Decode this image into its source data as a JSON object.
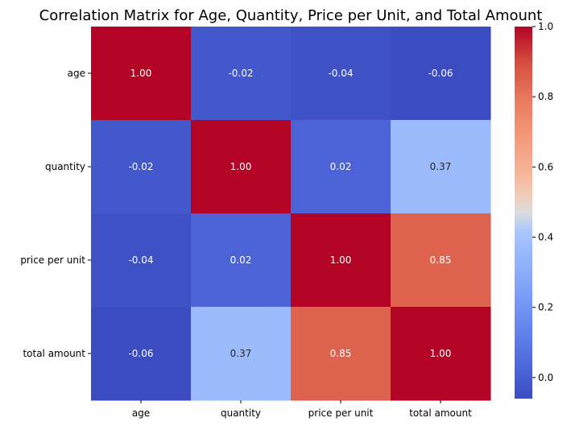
{
  "chart_data": {
    "type": "heatmap",
    "title": "Correlation Matrix for Age, Quantity, Price per Unit, and Total Amount",
    "x_labels": [
      "age",
      "quantity",
      "price per unit",
      "total amount"
    ],
    "y_labels": [
      "age",
      "quantity",
      "price per unit",
      "total amount"
    ],
    "values": [
      [
        1.0,
        -0.02,
        -0.04,
        -0.06
      ],
      [
        -0.02,
        1.0,
        0.02,
        0.37
      ],
      [
        -0.04,
        0.02,
        1.0,
        0.85
      ],
      [
        -0.06,
        0.37,
        0.85,
        1.0
      ]
    ],
    "annotations": [
      [
        "1.00",
        "-0.02",
        "-0.04",
        "-0.06"
      ],
      [
        "-0.02",
        "1.00",
        "0.02",
        "0.37"
      ],
      [
        "-0.04",
        "0.02",
        "1.00",
        "0.85"
      ],
      [
        "-0.06",
        "0.37",
        "0.85",
        "1.00"
      ]
    ],
    "colormap": "coolwarm",
    "color_range": [
      -0.06,
      1.0
    ],
    "colorbar_ticks": [
      {
        "value": -0.06,
        "label": ""
      },
      {
        "value": 0.0,
        "label": "0.0"
      },
      {
        "value": 0.2,
        "label": "0.2"
      },
      {
        "value": 0.4,
        "label": "0.4"
      },
      {
        "value": 0.6,
        "label": "0.6"
      },
      {
        "value": 0.8,
        "label": "0.8"
      },
      {
        "value": 1.0,
        "label": "1.0"
      }
    ],
    "grid": false,
    "legend": "colorbar-right"
  }
}
